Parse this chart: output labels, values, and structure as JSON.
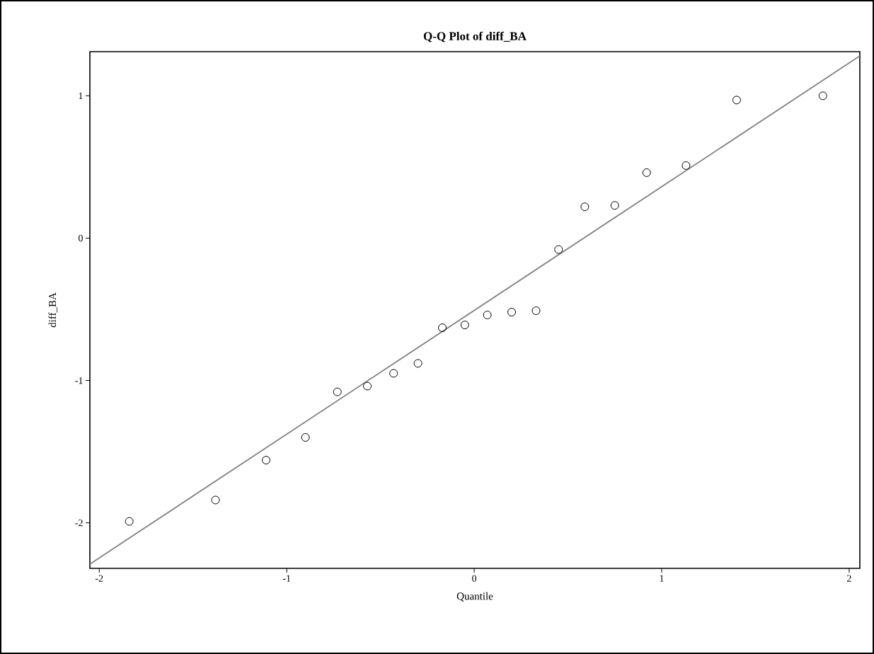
{
  "chart_data": {
    "type": "scatter",
    "title": "Q-Q Plot of diff_BA",
    "xlabel": "Quantile",
    "ylabel": "diff_BA",
    "xlim": [
      -2.05,
      2.057
    ],
    "ylim": [
      -2.32,
      1.31
    ],
    "xticks": [
      -2,
      -1,
      0,
      1,
      2
    ],
    "yticks": [
      -2,
      -1,
      0,
      1
    ],
    "grid": false,
    "series": [
      {
        "type": "line",
        "color": "#808080",
        "marker": "none",
        "x": [
          -2.05,
          2.057
        ],
        "values": [
          -2.29,
          1.28
        ]
      },
      {
        "color": "#000000",
        "marker": "circle",
        "x": [
          -1.84,
          -1.38,
          -1.11,
          -0.9,
          -0.73,
          -0.57,
          -0.43,
          -0.3,
          -0.17,
          -0.05,
          0.07,
          0.2,
          0.33,
          0.45,
          0.59,
          0.75,
          0.92,
          1.13,
          1.4,
          1.86
        ],
        "values": [
          -1.99,
          -1.84,
          -1.56,
          -1.4,
          -1.08,
          -1.04,
          -0.95,
          -0.88,
          -0.63,
          -0.61,
          -0.54,
          -0.52,
          -0.51,
          -0.08,
          0.22,
          0.23,
          0.46,
          0.51,
          0.97,
          1.0
        ]
      }
    ]
  }
}
